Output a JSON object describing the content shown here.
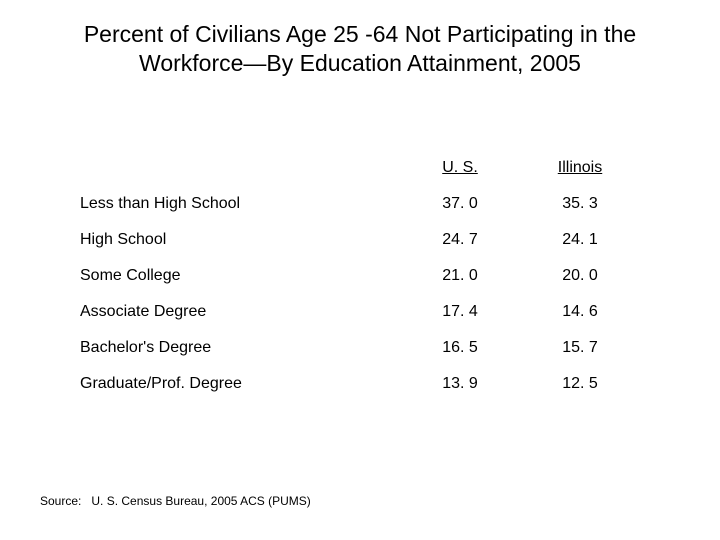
{
  "title": "Percent of Civilians Age 25 -64 Not Participating in the Workforce—By Education Attainment, 2005",
  "table": {
    "columns": [
      "",
      "U. S.",
      "Illinois"
    ],
    "rows": [
      {
        "label": "Less than High School",
        "us": "37. 0",
        "il": "35. 3"
      },
      {
        "label": "High School",
        "us": "24. 7",
        "il": "24. 1"
      },
      {
        "label": "Some College",
        "us": "21. 0",
        "il": "20. 0"
      },
      {
        "label": "Associate Degree",
        "us": "17. 4",
        "il": "14. 6"
      },
      {
        "label": "Bachelor's Degree",
        "us": "16. 5",
        "il": "15. 7"
      },
      {
        "label": "Graduate/Prof. Degree",
        "us": "13. 9",
        "il": "12. 5"
      }
    ]
  },
  "source_label": "Source:",
  "source_text": "U. S. Census Bureau, 2005 ACS (PUMS)",
  "colors": {
    "background": "#ffffff",
    "text": "#000000"
  },
  "typography": {
    "title_fontsize": 23,
    "body_fontsize": 16,
    "source_fontsize": 12,
    "font_family": "Arial"
  }
}
